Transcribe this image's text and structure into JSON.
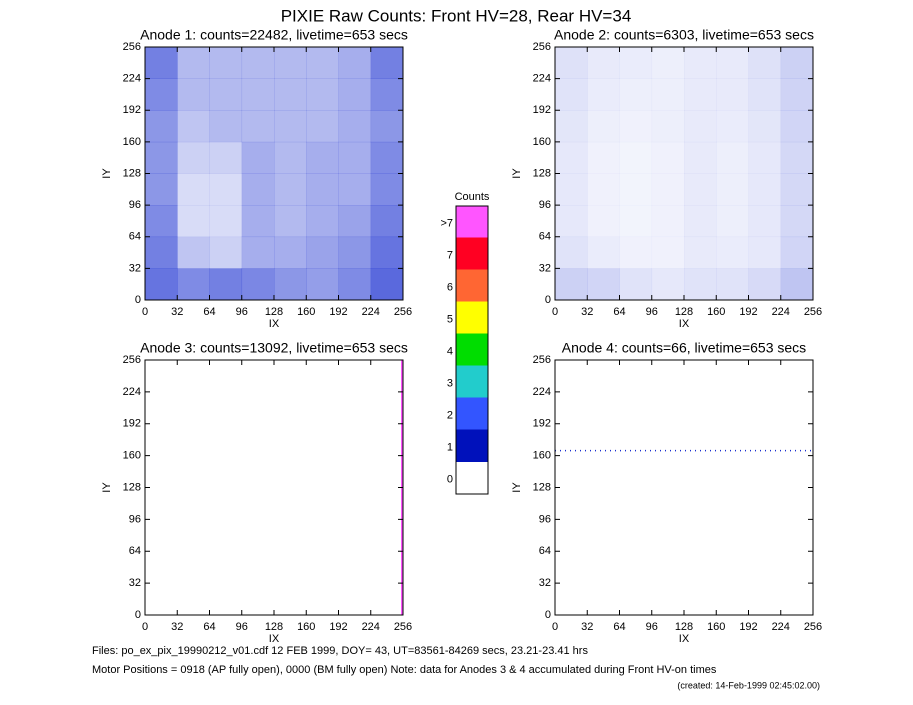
{
  "title": "PIXIE Raw Counts:  Front HV=28, Rear HV=34",
  "panels": [
    {
      "type": "heatmap",
      "title": "Anode 1: counts=22482, livetime=653 secs",
      "xlabel": "IX",
      "ylabel": "IY",
      "xlim": [
        0,
        256
      ],
      "ylim": [
        0,
        256
      ],
      "xticks": [
        0,
        32,
        64,
        96,
        128,
        160,
        192,
        224,
        256
      ],
      "yticks": [
        0,
        32,
        64,
        96,
        128,
        160,
        192,
        224,
        256
      ],
      "color": "#1a2fd0",
      "grid": [
        [
          600,
          500,
          550,
          520,
          450,
          420,
          500,
          650
        ],
        [
          550,
          250,
          200,
          350,
          350,
          400,
          450,
          600
        ],
        [
          500,
          150,
          150,
          350,
          300,
          350,
          400,
          550
        ],
        [
          450,
          150,
          150,
          350,
          300,
          350,
          350,
          500
        ],
        [
          450,
          200,
          200,
          350,
          300,
          350,
          350,
          500
        ],
        [
          450,
          250,
          300,
          300,
          300,
          300,
          350,
          450
        ],
        [
          500,
          300,
          300,
          300,
          300,
          300,
          350,
          500
        ],
        [
          550,
          300,
          300,
          300,
          300,
          300,
          350,
          550
        ]
      ]
    },
    {
      "type": "heatmap",
      "title": "Anode 2: counts=6303, livetime=653 secs",
      "xlabel": "IX",
      "ylabel": "IY",
      "xlim": [
        0,
        256
      ],
      "ylim": [
        0,
        256
      ],
      "xticks": [
        0,
        32,
        64,
        96,
        128,
        160,
        192,
        224,
        256
      ],
      "yticks": [
        0,
        32,
        64,
        96,
        128,
        160,
        192,
        224,
        256
      ],
      "color": "#1a2fd0",
      "grid": [
        [
          200,
          180,
          120,
          100,
          120,
          120,
          160,
          250
        ],
        [
          120,
          80,
          60,
          60,
          90,
          80,
          100,
          180
        ],
        [
          100,
          60,
          50,
          60,
          90,
          70,
          100,
          170
        ],
        [
          100,
          60,
          50,
          60,
          90,
          70,
          100,
          170
        ],
        [
          100,
          60,
          50,
          60,
          90,
          70,
          100,
          170
        ],
        [
          110,
          70,
          60,
          70,
          90,
          80,
          110,
          180
        ],
        [
          120,
          80,
          70,
          70,
          90,
          90,
          120,
          190
        ],
        [
          130,
          90,
          80,
          70,
          90,
          90,
          130,
          200
        ]
      ]
    },
    {
      "type": "edge",
      "title": "Anode 3: counts=13092, livetime=653 secs",
      "xlabel": "IX",
      "ylabel": "IY",
      "xlim": [
        0,
        256
      ],
      "ylim": [
        0,
        256
      ],
      "xticks": [
        0,
        32,
        64,
        96,
        128,
        160,
        192,
        224,
        256
      ],
      "yticks": [
        0,
        32,
        64,
        96,
        128,
        160,
        192,
        224,
        256
      ],
      "color": "#ff55ff",
      "x": 255
    },
    {
      "type": "row",
      "title": "Anode 4: counts=66, livetime=653 secs",
      "xlabel": "IX",
      "ylabel": "IY",
      "xlim": [
        0,
        256
      ],
      "ylim": [
        0,
        256
      ],
      "xticks": [
        0,
        32,
        64,
        96,
        128,
        160,
        192,
        224,
        256
      ],
      "yticks": [
        0,
        32,
        64,
        96,
        128,
        160,
        192,
        224,
        256
      ],
      "color": "#1a2fd0",
      "y": 165
    }
  ],
  "colorbar": {
    "title": "Counts",
    "levels": [
      {
        "label": ">7",
        "color": "#ff55ff"
      },
      {
        "label": "7",
        "color": "#ff0022"
      },
      {
        "label": "6",
        "color": "#ff6633"
      },
      {
        "label": "5",
        "color": "#ffff00"
      },
      {
        "label": "4",
        "color": "#00dd00"
      },
      {
        "label": "3",
        "color": "#22cccc"
      },
      {
        "label": "2",
        "color": "#3355ff"
      },
      {
        "label": "1",
        "color": "#0011bb"
      },
      {
        "label": "0",
        "color": "#ffffff"
      }
    ]
  },
  "footer": {
    "files": "Files: po_ex_pix_19990212_v01.cdf    12 FEB 1999, DOY= 43, UT=83561-84269 secs, 23.21-23.41 hrs",
    "motor": "Motor Positions = 0918 (AP fully open), 0000 (BM fully open)    Note: data for Anodes 3 & 4 accumulated during Front HV-on times",
    "created": "(created: 14-Feb-1999 02:45:02.00)"
  }
}
